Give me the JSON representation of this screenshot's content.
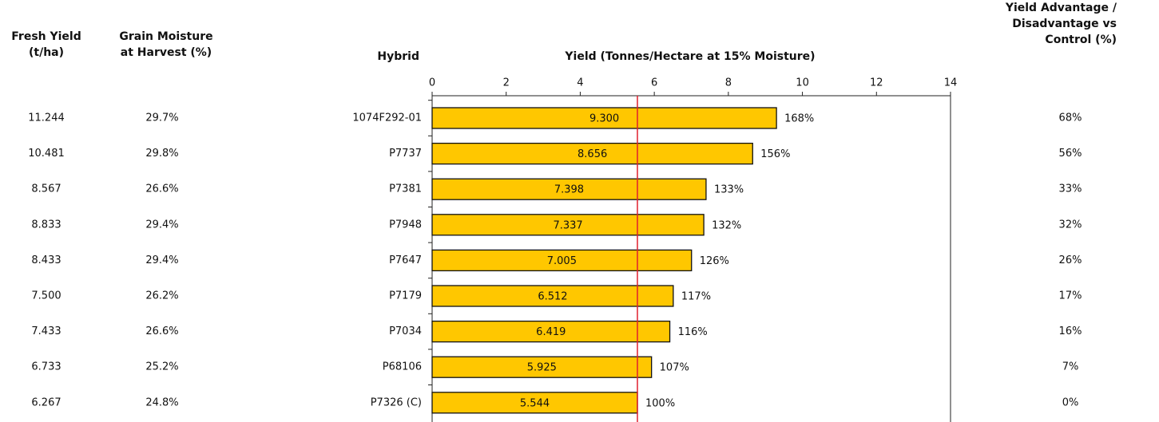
{
  "chart_data": {
    "type": "bar",
    "orientation": "horizontal",
    "title": "Yield (Tonnes/Hectare at 15% Moisture)",
    "category_header": "Hybrid",
    "categories": [
      "1074F292-01",
      "P7737",
      "P7381",
      "P7948",
      "P7647",
      "P7179",
      "P7034",
      "P68106",
      "P7326 (C)"
    ],
    "values": [
      9.3,
      8.656,
      7.398,
      7.337,
      7.005,
      6.512,
      6.419,
      5.925,
      5.544
    ],
    "value_labels": [
      "9.300",
      "8.656",
      "7.398",
      "7.337",
      "7.005",
      "6.512",
      "6.419",
      "5.925",
      "5.544"
    ],
    "relative_labels": [
      "168%",
      "156%",
      "133%",
      "132%",
      "126%",
      "117%",
      "116%",
      "107%",
      "100%"
    ],
    "color": "#ffc700",
    "relative_color": "#e0202e",
    "reference_line": 5.544,
    "reference_color": "#e0202e",
    "xlim": [
      0,
      14
    ],
    "xticks": [
      0,
      2,
      4,
      6,
      8,
      10,
      12,
      14
    ]
  },
  "table": {
    "left_columns": [
      {
        "header": [
          "Fresh Yield",
          "(t/ha)"
        ],
        "cells": [
          "11.244",
          "10.481",
          "8.567",
          "8.833",
          "8.433",
          "7.500",
          "7.433",
          "6.733",
          "6.267"
        ]
      },
      {
        "header": [
          "Grain Moisture",
          "at Harvest (%)"
        ],
        "cells": [
          "29.7%",
          "29.8%",
          "26.6%",
          "29.4%",
          "29.4%",
          "26.2%",
          "26.6%",
          "25.2%",
          "24.8%"
        ]
      }
    ],
    "right_column": {
      "header": [
        "Yield Advantage /",
        "Disadvantage vs",
        "Control (%)"
      ],
      "cells": [
        "68%",
        "56%",
        "33%",
        "32%",
        "26%",
        "17%",
        "16%",
        "7%",
        "0%"
      ]
    }
  }
}
